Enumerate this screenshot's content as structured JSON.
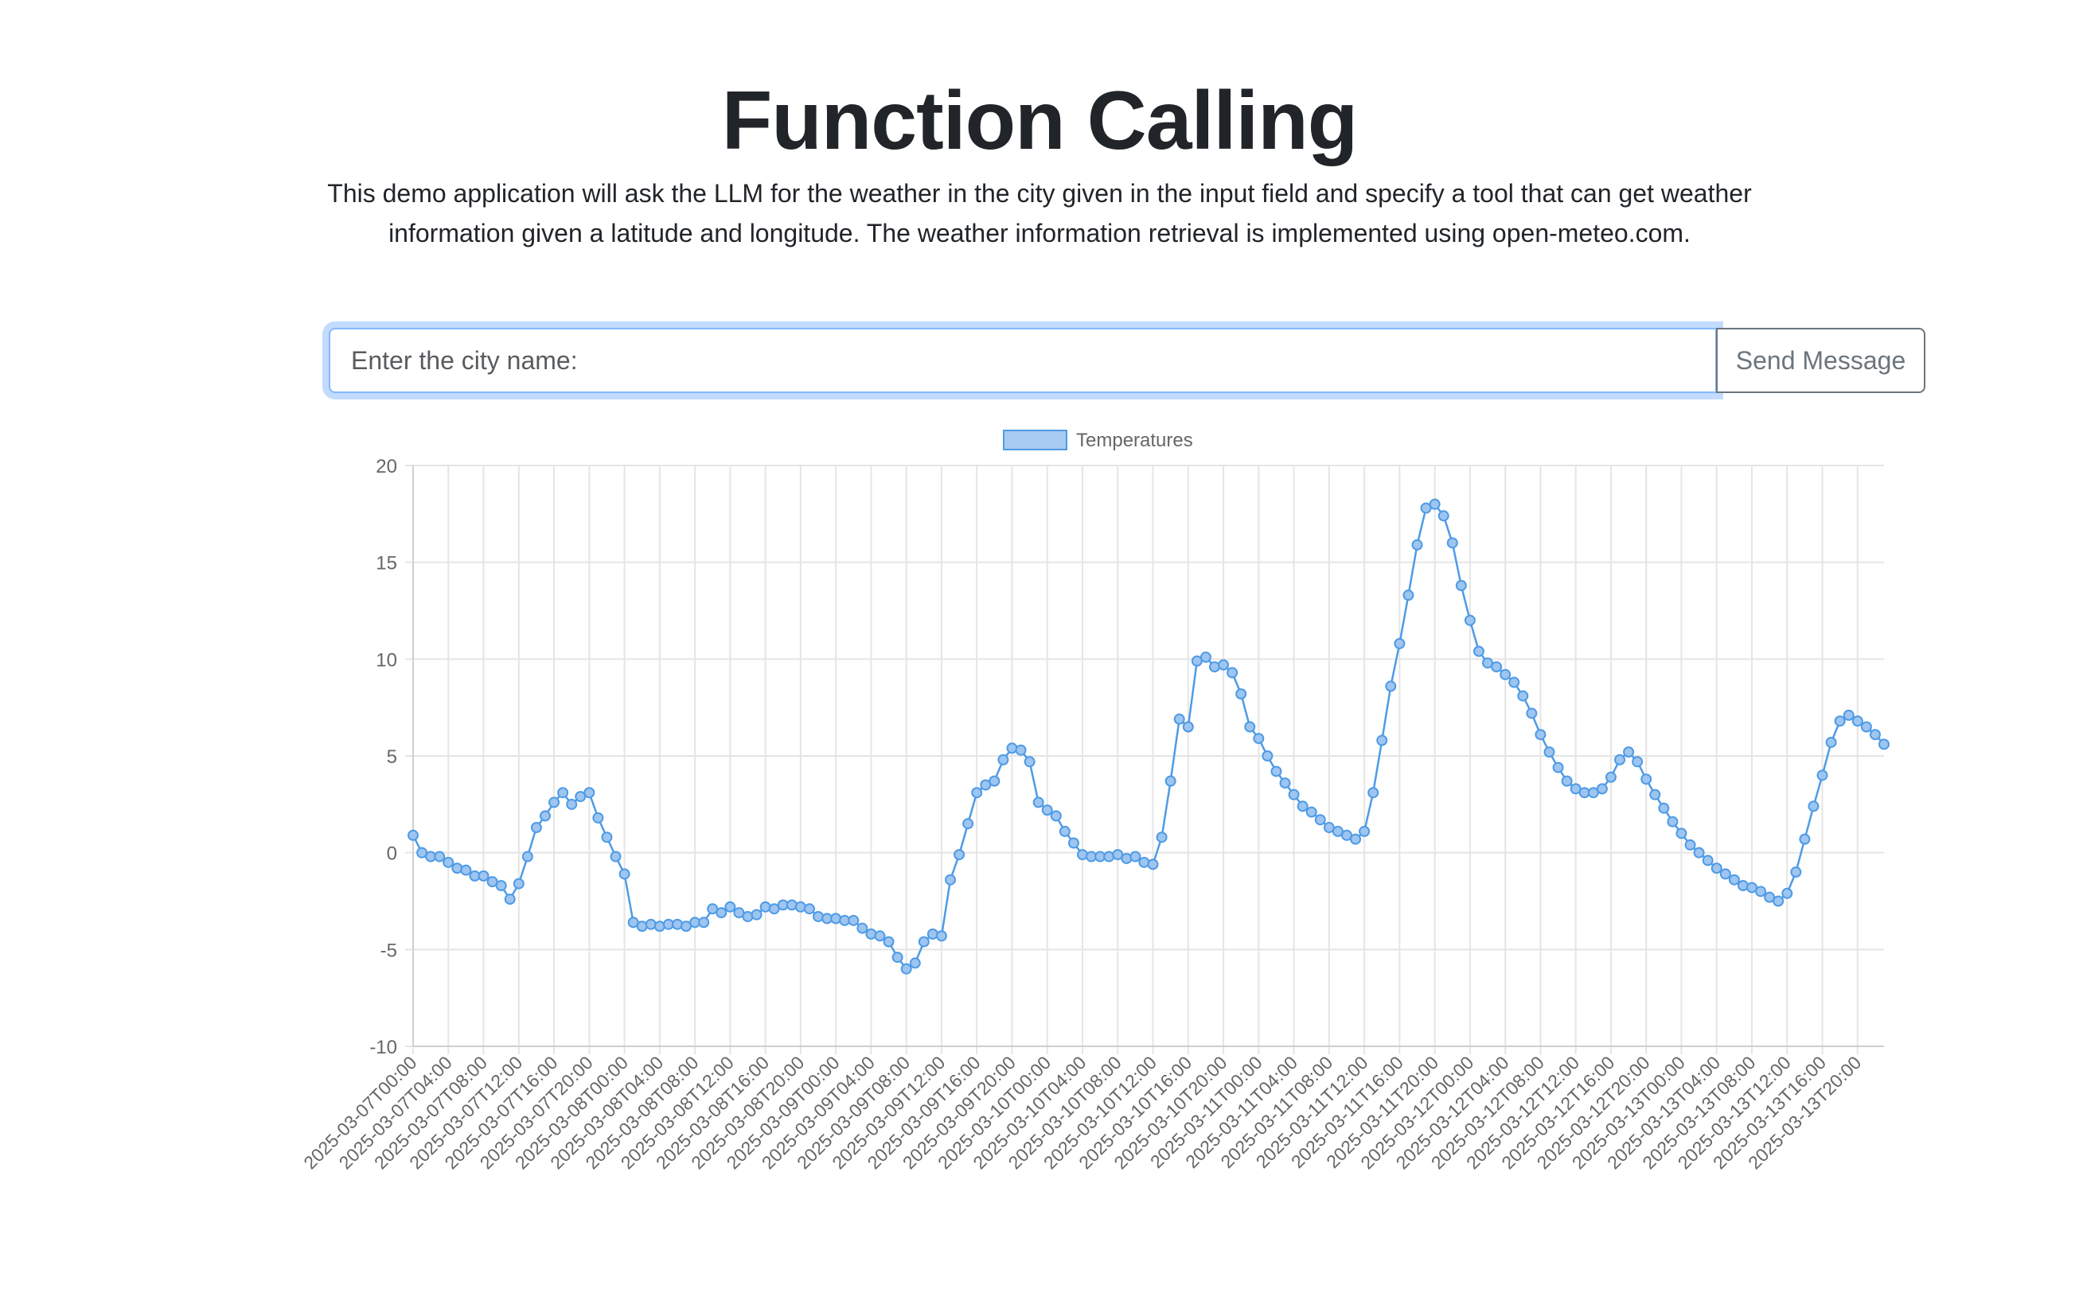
{
  "page": {
    "title": "Function Calling",
    "description": "This demo application will ask the LLM for the weather in the city given in the input field and specify a tool that can get weather information given a latitude and longitude. The weather information retrieval is implemented using open-meteo.com."
  },
  "form": {
    "city_placeholder": "Enter the city name:",
    "city_value": "",
    "send_label": "Send Message"
  },
  "colors": {
    "line": "#4e9be6",
    "point_fill": "#9ec5f0",
    "grid": "#e5e5e5",
    "focus_border": "#86b7fe"
  },
  "chart_data": {
    "type": "line",
    "title": "",
    "xlabel": "",
    "ylabel": "",
    "legend_position": "top",
    "grid": true,
    "ylim": [
      -10,
      20
    ],
    "yticks": [
      20,
      15,
      10,
      5,
      0,
      -5,
      -10
    ],
    "x_start": "2025-03-07T00:00",
    "x_step_hours": 1,
    "x_tick_labels": [
      "2025-03-07T00:00",
      "2025-03-07T04:00",
      "2025-03-07T08:00",
      "2025-03-07T12:00",
      "2025-03-07T16:00",
      "2025-03-07T20:00",
      "2025-03-08T00:00",
      "2025-03-08T04:00",
      "2025-03-08T08:00",
      "2025-03-08T12:00",
      "2025-03-08T16:00",
      "2025-03-08T20:00",
      "2025-03-09T00:00",
      "2025-03-09T04:00",
      "2025-03-09T08:00",
      "2025-03-09T12:00",
      "2025-03-09T16:00",
      "2025-03-09T20:00",
      "2025-03-10T00:00",
      "2025-03-10T04:00",
      "2025-03-10T08:00",
      "2025-03-10T12:00",
      "2025-03-10T16:00",
      "2025-03-10T20:00",
      "2025-03-11T00:00",
      "2025-03-11T04:00",
      "2025-03-11T08:00",
      "2025-03-11T12:00",
      "2025-03-11T16:00",
      "2025-03-11T20:00",
      "2025-03-12T00:00",
      "2025-03-12T04:00",
      "2025-03-12T08:00",
      "2025-03-12T12:00",
      "2025-03-12T16:00",
      "2025-03-12T20:00",
      "2025-03-13T00:00",
      "2025-03-13T04:00",
      "2025-03-13T08:00",
      "2025-03-13T12:00",
      "2025-03-13T16:00",
      "2025-03-13T20:00"
    ],
    "series": [
      {
        "name": "Temperatures",
        "values": [
          0.9,
          0.0,
          -0.2,
          -0.2,
          -0.5,
          -0.8,
          -0.9,
          -1.2,
          -1.2,
          -1.5,
          -1.7,
          -2.4,
          -1.6,
          -0.2,
          1.3,
          1.9,
          2.6,
          3.1,
          2.5,
          2.9,
          3.1,
          1.8,
          0.8,
          -0.2,
          -1.1,
          -3.6,
          -3.8,
          -3.7,
          -3.8,
          -3.7,
          -3.7,
          -3.8,
          -3.6,
          -3.6,
          -2.9,
          -3.1,
          -2.8,
          -3.1,
          -3.3,
          -3.2,
          -2.8,
          -2.9,
          -2.7,
          -2.7,
          -2.8,
          -2.9,
          -3.3,
          -3.4,
          -3.4,
          -3.5,
          -3.5,
          -3.9,
          -4.2,
          -4.3,
          -4.6,
          -5.4,
          -6.0,
          -5.7,
          -4.6,
          -4.2,
          -4.3,
          -1.4,
          -0.1,
          1.5,
          3.1,
          3.5,
          3.7,
          4.8,
          5.4,
          5.3,
          4.7,
          2.6,
          2.2,
          1.9,
          1.1,
          0.5,
          -0.1,
          -0.2,
          -0.2,
          -0.2,
          -0.1,
          -0.3,
          -0.2,
          -0.5,
          -0.6,
          0.8,
          3.7,
          6.9,
          6.5,
          9.9,
          10.1,
          9.6,
          9.7,
          9.3,
          8.2,
          6.5,
          5.9,
          5.0,
          4.2,
          3.6,
          3.0,
          2.4,
          2.1,
          1.7,
          1.3,
          1.1,
          0.9,
          0.7,
          1.1,
          3.1,
          5.8,
          8.6,
          10.8,
          13.3,
          15.9,
          17.8,
          18.0,
          17.4,
          16.0,
          13.8,
          12.0,
          10.4,
          9.8,
          9.6,
          9.2,
          8.8,
          8.1,
          7.2,
          6.1,
          5.2,
          4.4,
          3.7,
          3.3,
          3.1,
          3.1,
          3.3,
          3.9,
          4.8,
          5.2,
          4.7,
          3.8,
          3.0,
          2.3,
          1.6,
          1.0,
          0.4,
          0.0,
          -0.4,
          -0.8,
          -1.1,
          -1.4,
          -1.7,
          -1.8,
          -2.0,
          -2.3,
          -2.5,
          -2.1,
          -1.0,
          0.7,
          2.4,
          4.0,
          5.7,
          6.8,
          7.1,
          6.8,
          6.5,
          6.1,
          5.6
        ]
      }
    ]
  }
}
